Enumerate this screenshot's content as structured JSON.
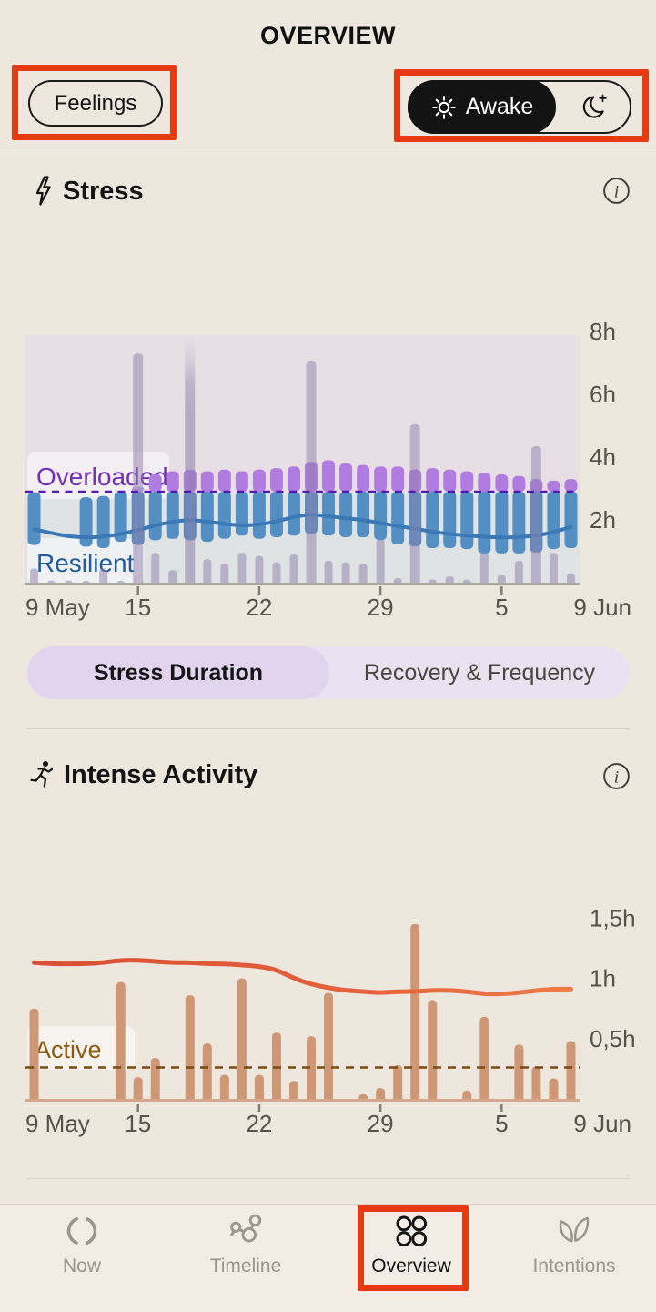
{
  "title": "OVERVIEW",
  "header": {
    "feelings_label": "Feelings",
    "toggle": {
      "awake_label": "Awake",
      "selected": "awake",
      "icons": [
        "sun-icon",
        "moon-icon"
      ]
    }
  },
  "sections": {
    "stress": {
      "title": "Stress",
      "icon": "bolt-icon"
    },
    "activity": {
      "title": "Intense Activity",
      "icon": "runner-icon"
    }
  },
  "segmented": {
    "left_label": "Stress Duration",
    "right_label": "Recovery & Frequency",
    "selected": "left"
  },
  "tabbar": {
    "items": [
      {
        "id": "now",
        "label": "Now",
        "icon": "brush-circle-icon",
        "active": false
      },
      {
        "id": "timeline",
        "label": "Timeline",
        "icon": "molecule-icon",
        "active": false
      },
      {
        "id": "overview",
        "label": "Overview",
        "icon": "four-circles-icon",
        "active": true
      },
      {
        "id": "intentions",
        "label": "Intentions",
        "icon": "leaves-icon",
        "active": false
      }
    ]
  },
  "annotations": {
    "color": "#E63B12",
    "boxes": [
      "feelings-button",
      "day-night-toggle",
      "overview-tab"
    ]
  },
  "chart_data": [
    {
      "type": "bar",
      "title": "Stress",
      "days": 32,
      "x_axis": {
        "start_label": "9 May",
        "end_label": "9 Jun",
        "tick_labels": [
          "15",
          "22",
          "29",
          "5"
        ],
        "tick_days": [
          6,
          13,
          20,
          27
        ]
      },
      "y_axis": {
        "labels": [
          {
            "v": 8,
            "t": "8h"
          },
          {
            "v": 6,
            "t": "6h"
          },
          {
            "v": 4,
            "t": "4h"
          },
          {
            "v": 2,
            "t": "2h"
          }
        ],
        "ylim": [
          0,
          7.9
        ],
        "unit": "hours"
      },
      "threshold": 2.9,
      "zone_labels": {
        "above": "Overloaded",
        "below": "Resilient"
      },
      "overloaded_light_days": [
        6
      ],
      "series": [
        {
          "name": "overloaded_top",
          "values": [
            0,
            0,
            0,
            0,
            0,
            0,
            3.05,
            3.45,
            3.55,
            3.6,
            3.55,
            3.6,
            3.55,
            3.6,
            3.65,
            3.7,
            3.85,
            3.9,
            3.8,
            3.75,
            3.7,
            3.7,
            3.6,
            3.65,
            3.6,
            3.55,
            3.5,
            3.45,
            3.4,
            3.3,
            3.25,
            3.3
          ]
        },
        {
          "name": "resilient_top",
          "values": [
            2.88,
            null,
            null,
            2.72,
            2.76,
            2.9,
            2.9,
            2.9,
            2.9,
            2.9,
            2.9,
            2.9,
            2.9,
            2.9,
            2.9,
            2.9,
            2.9,
            2.9,
            2.9,
            2.9,
            2.9,
            2.9,
            2.9,
            2.9,
            2.9,
            2.9,
            2.9,
            2.9,
            2.9,
            2.9,
            2.9,
            2.9
          ]
        },
        {
          "name": "resilient_low",
          "values": [
            1.2,
            null,
            null,
            1.15,
            1.1,
            1.3,
            1.2,
            1.35,
            1.4,
            1.35,
            1.3,
            1.4,
            1.5,
            1.4,
            1.45,
            1.5,
            1.55,
            1.5,
            1.45,
            1.45,
            1.36,
            1.22,
            1.16,
            1.1,
            1.1,
            1.07,
            0.93,
            0.93,
            0.93,
            0.96,
            1.07,
            1.1
          ]
        },
        {
          "name": "background_spikes",
          "values": [
            0,
            0,
            0,
            0,
            0,
            0,
            7.3,
            0,
            0,
            8.3,
            0,
            0,
            0,
            0,
            0,
            0,
            7.05,
            0,
            0,
            0,
            0,
            0,
            5.05,
            0,
            0,
            0,
            0,
            0,
            0,
            4.35,
            0,
            0
          ]
        },
        {
          "name": "small_bars",
          "values": [
            0.45,
            0.07,
            0.07,
            0.06,
            0.45,
            0.06,
            0,
            0.95,
            0.4,
            0,
            0.75,
            0.6,
            0.95,
            0.85,
            0.65,
            0.9,
            0,
            0.7,
            0.65,
            0.6,
            1.4,
            0.15,
            0,
            0.1,
            0.2,
            0.1,
            0.95,
            0.25,
            0.7,
            0,
            0.95,
            0.3
          ]
        },
        {
          "name": "trend",
          "values": [
            1.7,
            1.58,
            1.47,
            1.44,
            1.46,
            1.55,
            1.68,
            1.82,
            1.95,
            2.0,
            1.95,
            1.87,
            1.82,
            1.85,
            1.95,
            2.1,
            2.18,
            2.12,
            2.05,
            2.0,
            1.9,
            1.8,
            1.72,
            1.62,
            1.55,
            1.5,
            1.46,
            1.44,
            1.45,
            1.5,
            1.6,
            1.78
          ]
        }
      ],
      "colors": {
        "bg_upper": "#E8DFE5",
        "bg_lower": "#DFE3E4",
        "overloaded_bar": "#B07CE0",
        "overloaded_bar_light": "#C9A6EA",
        "resilient_bar": "#538FC2",
        "trend": "#3B79B6",
        "threshold_line": "#5519B5",
        "spike": "#8F7FAB",
        "zone_above_text": "#7430B4",
        "zone_below_text": "#1E5C9E",
        "axis": "#AFA8A0",
        "tick": "#857F77",
        "label_text": "#57524B"
      }
    },
    {
      "type": "bar",
      "title": "Intense Activity",
      "days": 32,
      "x_axis": {
        "start_label": "9 May",
        "end_label": "9 Jun",
        "tick_labels": [
          "15",
          "22",
          "29",
          "5"
        ],
        "tick_days": [
          6,
          13,
          20,
          27
        ]
      },
      "y_axis": {
        "labels": [
          {
            "v": 1.5,
            "t": "1,5h"
          },
          {
            "v": 1,
            "t": "1h"
          },
          {
            "v": 0.5,
            "t": "0,5h"
          }
        ],
        "ylim": [
          0,
          1.75
        ],
        "unit": "hours"
      },
      "threshold": 0.26,
      "threshold_label": "Active",
      "values": [
        0.75,
        0,
        0,
        0,
        0,
        0.97,
        0.18,
        0.34,
        0,
        0.86,
        0.46,
        0.2,
        1.0,
        0.2,
        0.55,
        0.15,
        0.52,
        0.88,
        0,
        0.04,
        0.09,
        0.28,
        1.45,
        0.82,
        0,
        0.07,
        0.68,
        0,
        0.45,
        0.27,
        0.17,
        0.48
      ],
      "trend": [
        1.13,
        1.12,
        1.12,
        1.12,
        1.13,
        1.15,
        1.15,
        1.14,
        1.13,
        1.13,
        1.12,
        1.12,
        1.11,
        1.1,
        1.07,
        1.0,
        0.95,
        0.92,
        0.9,
        0.89,
        0.88,
        0.89,
        0.89,
        0.9,
        0.9,
        0.89,
        0.87,
        0.87,
        0.88,
        0.9,
        0.91,
        0.91
      ],
      "colors": {
        "bar": "#CE9877",
        "trend_start": "#D94F35",
        "trend_end": "#EF7B45",
        "threshold_line": "#7A4A12",
        "threshold_text": "#8A5A16",
        "axis": "#D2A98C",
        "tick": "#857F77",
        "label_text": "#57524B"
      }
    }
  ]
}
